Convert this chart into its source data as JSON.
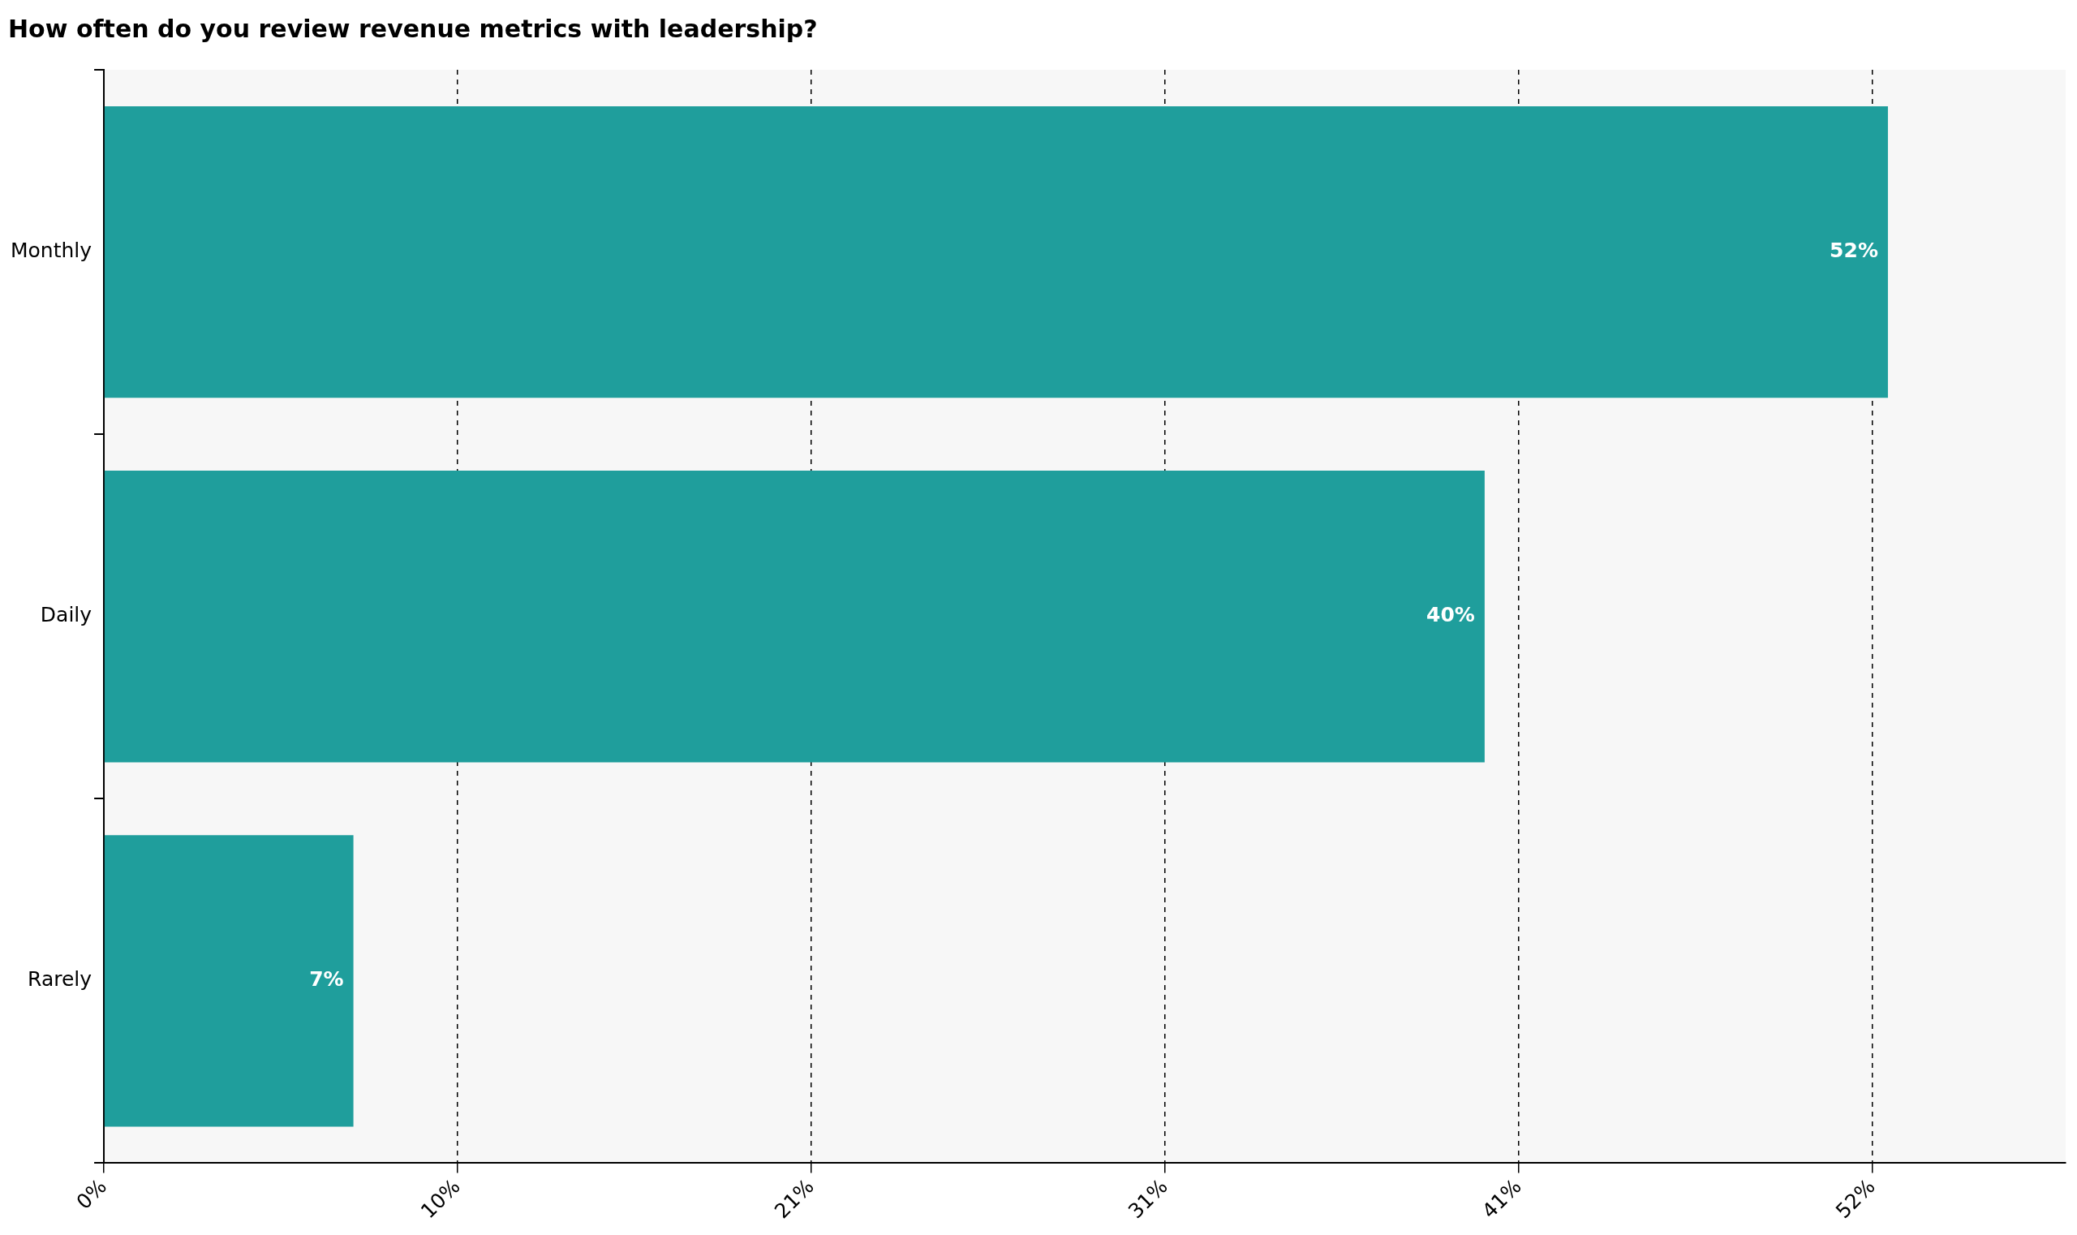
{
  "chart_data": {
    "type": "bar",
    "orientation": "horizontal",
    "title": "How often do you review revenue metrics with leadership?",
    "categories": [
      "Monthly",
      "Daily",
      "Rarely"
    ],
    "values": [
      52.2,
      40.4,
      7.3
    ],
    "value_labels": [
      "52%",
      "40%",
      "7%"
    ],
    "color": "#1f9e9c",
    "xlim": [
      0,
      57.4
    ],
    "xticks": [
      {
        "value": 0,
        "label": "0%"
      },
      {
        "value": 10.35,
        "label": "10%"
      },
      {
        "value": 20.7,
        "label": "21%"
      },
      {
        "value": 31.05,
        "label": "31%"
      },
      {
        "value": 41.4,
        "label": "41%"
      },
      {
        "value": 51.75,
        "label": "52%"
      }
    ],
    "grid": "x",
    "legend": false
  }
}
